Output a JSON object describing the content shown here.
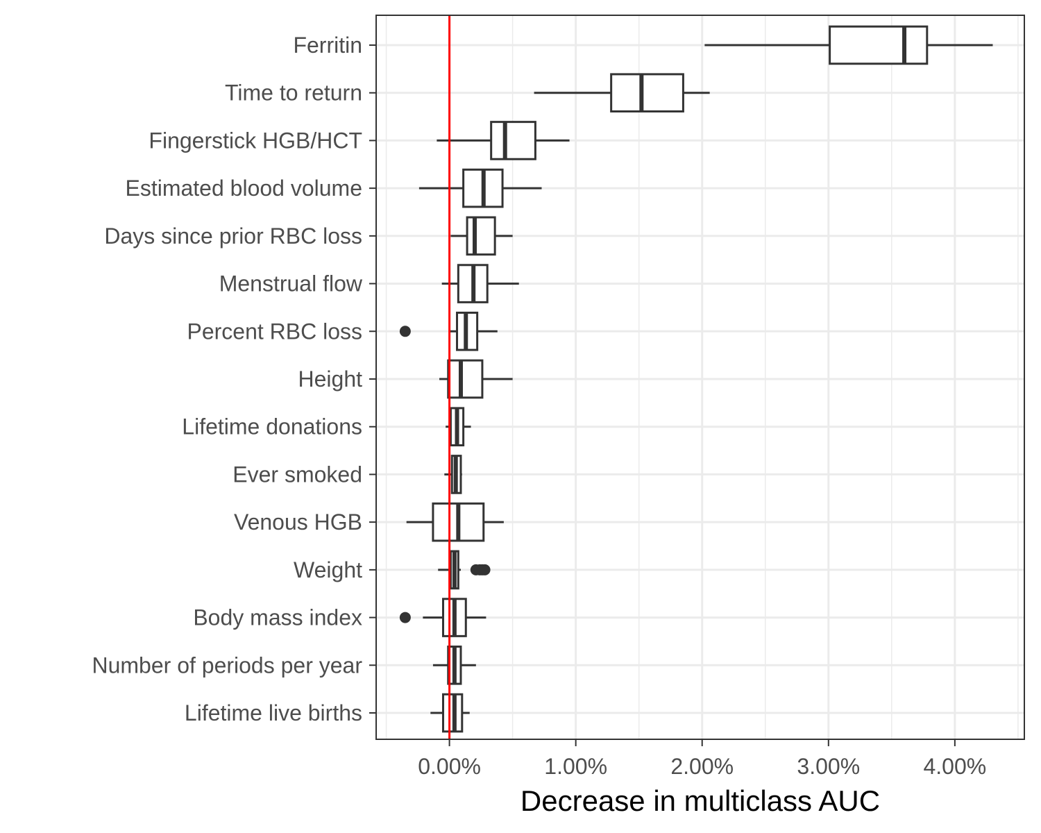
{
  "chart_data": {
    "type": "boxplot",
    "orientation": "horizontal",
    "title": "",
    "xlabel": "Decrease in multiclass AUC",
    "ylabel": "",
    "xlim": [
      -0.58,
      4.55
    ],
    "x_ticks": [
      0,
      1,
      2,
      3,
      4
    ],
    "x_tick_labels": [
      "0.00%",
      "1.00%",
      "2.00%",
      "3.00%",
      "4.00%"
    ],
    "grid": true,
    "reference_line": {
      "x": 0,
      "color": "#ff0000"
    },
    "categories": [
      "Ferritin",
      "Time to return",
      "Fingerstick HGB/HCT",
      "Estimated blood volume",
      "Days since prior RBC loss",
      "Menstrual flow",
      "Percent RBC loss",
      "Height",
      "Lifetime donations",
      "Ever smoked",
      "Venous HGB",
      "Weight",
      "Body mass index",
      "Number of periods per year",
      "Lifetime live births"
    ],
    "boxes": [
      {
        "label": "Ferritin",
        "whisker_low": 2.02,
        "q1": 3.01,
        "median": 3.6,
        "q3": 3.78,
        "whisker_high": 4.3,
        "outliers": []
      },
      {
        "label": "Time to return",
        "whisker_low": 0.67,
        "q1": 1.28,
        "median": 1.52,
        "q3": 1.85,
        "whisker_high": 2.06,
        "outliers": []
      },
      {
        "label": "Fingerstick HGB/HCT",
        "whisker_low": -0.1,
        "q1": 0.33,
        "median": 0.44,
        "q3": 0.68,
        "whisker_high": 0.95,
        "outliers": []
      },
      {
        "label": "Estimated blood volume",
        "whisker_low": -0.24,
        "q1": 0.11,
        "median": 0.27,
        "q3": 0.42,
        "whisker_high": 0.73,
        "outliers": []
      },
      {
        "label": "Days since prior RBC loss",
        "whisker_low": 0.01,
        "q1": 0.14,
        "median": 0.2,
        "q3": 0.36,
        "whisker_high": 0.5,
        "outliers": []
      },
      {
        "label": "Menstrual flow",
        "whisker_low": -0.06,
        "q1": 0.07,
        "median": 0.19,
        "q3": 0.3,
        "whisker_high": 0.55,
        "outliers": []
      },
      {
        "label": "Percent RBC loss",
        "whisker_low": 0.0,
        "q1": 0.06,
        "median": 0.13,
        "q3": 0.22,
        "whisker_high": 0.38,
        "outliers": [
          -0.35
        ]
      },
      {
        "label": "Height",
        "whisker_low": -0.08,
        "q1": -0.01,
        "median": 0.09,
        "q3": 0.26,
        "whisker_high": 0.5,
        "outliers": []
      },
      {
        "label": "Lifetime donations",
        "whisker_low": -0.03,
        "q1": 0.01,
        "median": 0.06,
        "q3": 0.11,
        "whisker_high": 0.17,
        "outliers": []
      },
      {
        "label": "Ever smoked",
        "whisker_low": -0.04,
        "q1": 0.02,
        "median": 0.05,
        "q3": 0.09,
        "whisker_high": 0.1,
        "outliers": []
      },
      {
        "label": "Venous HGB",
        "whisker_low": -0.34,
        "q1": -0.13,
        "median": 0.07,
        "q3": 0.27,
        "whisker_high": 0.43,
        "outliers": []
      },
      {
        "label": "Weight",
        "whisker_low": -0.09,
        "q1": 0.01,
        "median": 0.04,
        "q3": 0.07,
        "whisker_high": 0.09,
        "outliers": [
          0.21,
          0.24,
          0.26,
          0.28
        ]
      },
      {
        "label": "Body mass index",
        "whisker_low": -0.21,
        "q1": -0.05,
        "median": 0.04,
        "q3": 0.13,
        "whisker_high": 0.29,
        "outliers": [
          -0.35
        ]
      },
      {
        "label": "Number of periods per year",
        "whisker_low": -0.13,
        "q1": -0.01,
        "median": 0.04,
        "q3": 0.09,
        "whisker_high": 0.21,
        "outliers": []
      },
      {
        "label": "Lifetime live births",
        "whisker_low": -0.15,
        "q1": -0.05,
        "median": 0.04,
        "q3": 0.1,
        "whisker_high": 0.16,
        "outliers": []
      }
    ]
  }
}
